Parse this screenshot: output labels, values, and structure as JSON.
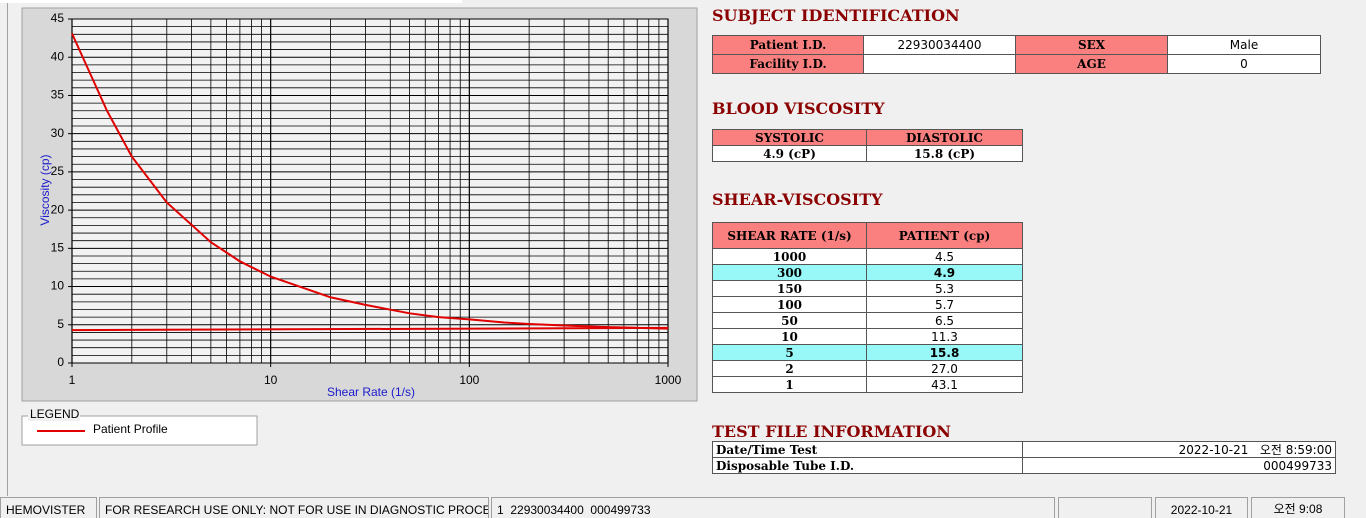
{
  "chart_data": {
    "type": "line",
    "xlabel": "Shear Rate (1/s)",
    "ylabel": "Viscosity (cp)",
    "x_scale": "log",
    "xlim": [
      1,
      1000
    ],
    "ylim": [
      0,
      45
    ],
    "xticks": [
      1,
      10,
      100,
      1000
    ],
    "yticks": [
      0,
      5,
      10,
      15,
      20,
      25,
      30,
      35,
      40,
      45
    ],
    "grid": true,
    "minor_grid": true,
    "legend_title": "LEGEND",
    "series": [
      {
        "name": "Patient Profile",
        "color": "#e00000",
        "x": [
          1,
          1.5,
          2,
          3,
          5,
          7,
          10,
          20,
          30,
          50,
          70,
          100,
          150,
          200,
          300,
          500,
          700,
          1000
        ],
        "values": [
          43.1,
          33,
          27.0,
          21,
          15.8,
          13.3,
          11.3,
          8.6,
          7.6,
          6.5,
          6.0,
          5.7,
          5.3,
          5.1,
          4.9,
          4.7,
          4.6,
          4.5
        ]
      },
      {
        "color": "#e00000",
        "x": [
          1,
          1000
        ],
        "values": [
          4.3,
          4.6
        ]
      }
    ]
  },
  "subject_identification": {
    "title": "SUBJECT IDENTIFICATION",
    "rows": [
      [
        "Patient I.D.",
        "22930034400",
        "SEX",
        "Male"
      ],
      [
        "Facility I.D.",
        null,
        "AGE",
        "0"
      ]
    ]
  },
  "blood_viscosity": {
    "title": "BLOOD VISCOSITY",
    "headers": [
      "SYSTOLIC",
      "DIASTOLIC"
    ],
    "values": [
      "4.9 (cP)",
      "15.8 (cP)"
    ]
  },
  "shear_viscosity": {
    "title": "SHEAR-VISCOSITY",
    "headers": [
      "SHEAR RATE (1/s)",
      "PATIENT (cp)"
    ],
    "rows": [
      [
        "1000",
        "4.5"
      ],
      [
        "300",
        "4.9"
      ],
      [
        "150",
        "5.3"
      ],
      [
        "100",
        "5.7"
      ],
      [
        "50",
        "6.5"
      ],
      [
        "10",
        "11.3"
      ],
      [
        "5",
        "15.8"
      ],
      [
        "2",
        "27.0"
      ],
      [
        "1",
        "43.1"
      ]
    ],
    "highlight_rows": [
      1,
      6
    ]
  },
  "test_file_information": {
    "title": "TEST FILE INFORMATION",
    "rows": [
      [
        "Date/Time Test",
        "2022-10-21   오전 8:59:00"
      ],
      [
        "Disposable Tube I.D.",
        "000499733"
      ]
    ]
  },
  "status_bar": [
    "HEMOVISTER",
    "FOR RESEARCH USE ONLY: NOT FOR USE IN DIAGNOSTIC PROCEDURES",
    "1  22930034400  000499733",
    "2022-10-21",
    "오전 9:08"
  ]
}
